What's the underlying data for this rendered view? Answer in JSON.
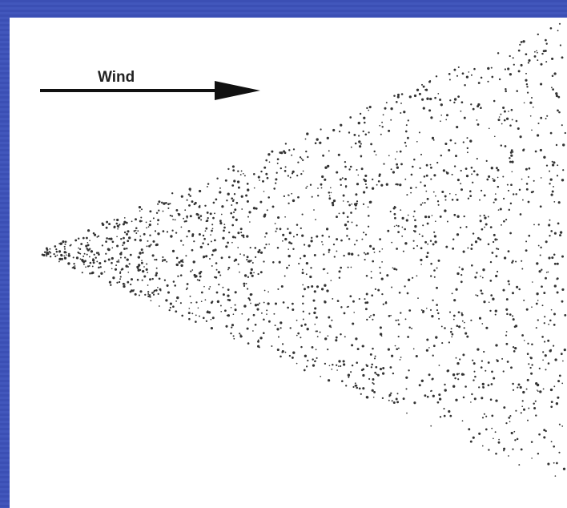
{
  "diagram": {
    "arrow_label": "Wind"
  }
}
